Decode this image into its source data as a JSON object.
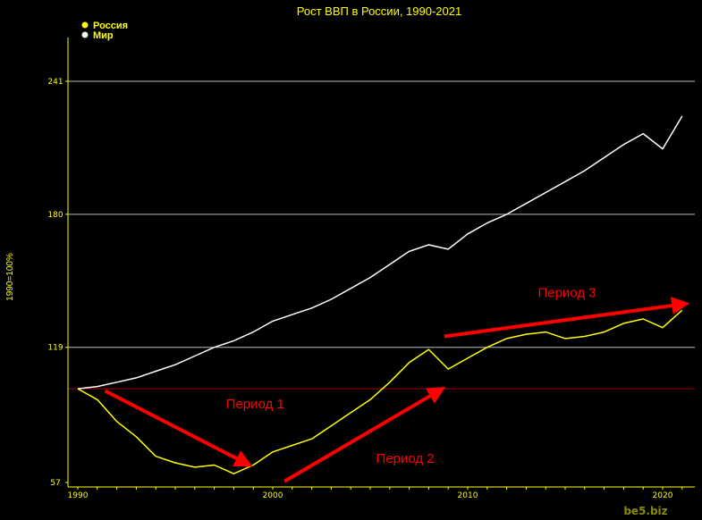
{
  "chart_data": {
    "type": "line",
    "title": "Рост ВВП в России, 1990-2021",
    "ylabel": "1990=100%",
    "legend_position": "top-left",
    "x": [
      1990,
      1991,
      1992,
      1993,
      1994,
      1995,
      1996,
      1997,
      1998,
      1999,
      2000,
      2001,
      2002,
      2003,
      2004,
      2005,
      2006,
      2007,
      2008,
      2009,
      2010,
      2011,
      2012,
      2013,
      2014,
      2015,
      2016,
      2017,
      2018,
      2019,
      2020,
      2021
    ],
    "series": [
      {
        "name": "Россия",
        "color": "#ffff00",
        "values": [
          100,
          95,
          85,
          78,
          69,
          66,
          64,
          65,
          61,
          65,
          71,
          74,
          77,
          83,
          89,
          95,
          103,
          112,
          118,
          109,
          114,
          119,
          123,
          125,
          126,
          123,
          124,
          126,
          130,
          132,
          128,
          136
        ]
      },
      {
        "name": "Мир",
        "color": "#ffffff",
        "values": [
          100,
          101,
          103,
          105,
          108,
          111,
          115,
          119,
          122,
          126,
          131,
          134,
          137,
          141,
          146,
          151,
          157,
          163,
          166,
          164,
          171,
          176,
          180,
          185,
          190,
          195,
          200,
          206,
          212,
          217,
          210,
          225
        ]
      }
    ],
    "xticks": [
      1990,
      2000,
      2010,
      2020
    ],
    "yticks": [
      57,
      119,
      180,
      241
    ],
    "xlim": [
      1990,
      2021.5
    ],
    "ylim": [
      57,
      241
    ],
    "reference_line": {
      "y": 100,
      "color": "#a00000"
    },
    "grid": "horizontal",
    "annotations": [
      {
        "text": "Период 1",
        "arrow_from": [
          1991.4,
          99
        ],
        "arrow_to": [
          1998.8,
          65
        ],
        "label_at": [
          1997.6,
          91
        ]
      },
      {
        "text": "Период 2",
        "arrow_from": [
          2000.6,
          57.5
        ],
        "arrow_to": [
          2008.7,
          100
        ],
        "label_at": [
          2005.3,
          66
        ]
      },
      {
        "text": "Период 3",
        "arrow_from": [
          2008.8,
          124
        ],
        "arrow_to": [
          2021.2,
          139
        ],
        "label_at": [
          2013.6,
          142
        ]
      }
    ]
  },
  "watermark": "be5.biz"
}
